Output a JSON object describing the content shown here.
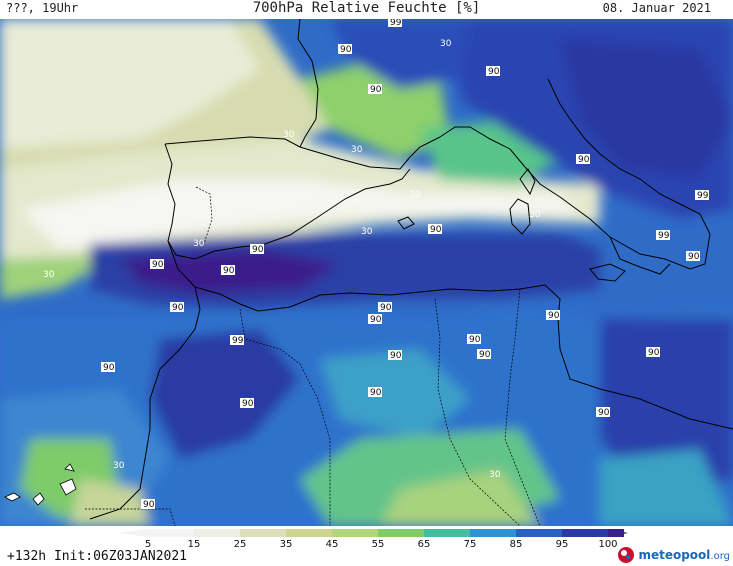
{
  "header": {
    "left": "???, 19Uhr",
    "center": "700hPa Relative Feuchte [%]",
    "right": "08. Januar 2021"
  },
  "map": {
    "region": "Western Mediterranean / North Africa",
    "field": "relative humidity 700hPa",
    "contour_labels": [
      "30",
      "90",
      "99"
    ]
  },
  "colorbar": {
    "ticks": [
      "5",
      "15",
      "25",
      "35",
      "45",
      "55",
      "65",
      "75",
      "85",
      "95",
      "100"
    ],
    "colors": [
      "#f4f4f4",
      "#ebeee0",
      "#dcdfb8",
      "#cdd48e",
      "#b0d57a",
      "#7fcd68",
      "#43bfa0",
      "#2e93d3",
      "#2860c4",
      "#2b3aa8",
      "#3a1f8c"
    ]
  },
  "footer": {
    "init": "+132h  Init:06Z03JAN2021",
    "brand_name": "meteopool",
    "brand_tld": ".org"
  }
}
